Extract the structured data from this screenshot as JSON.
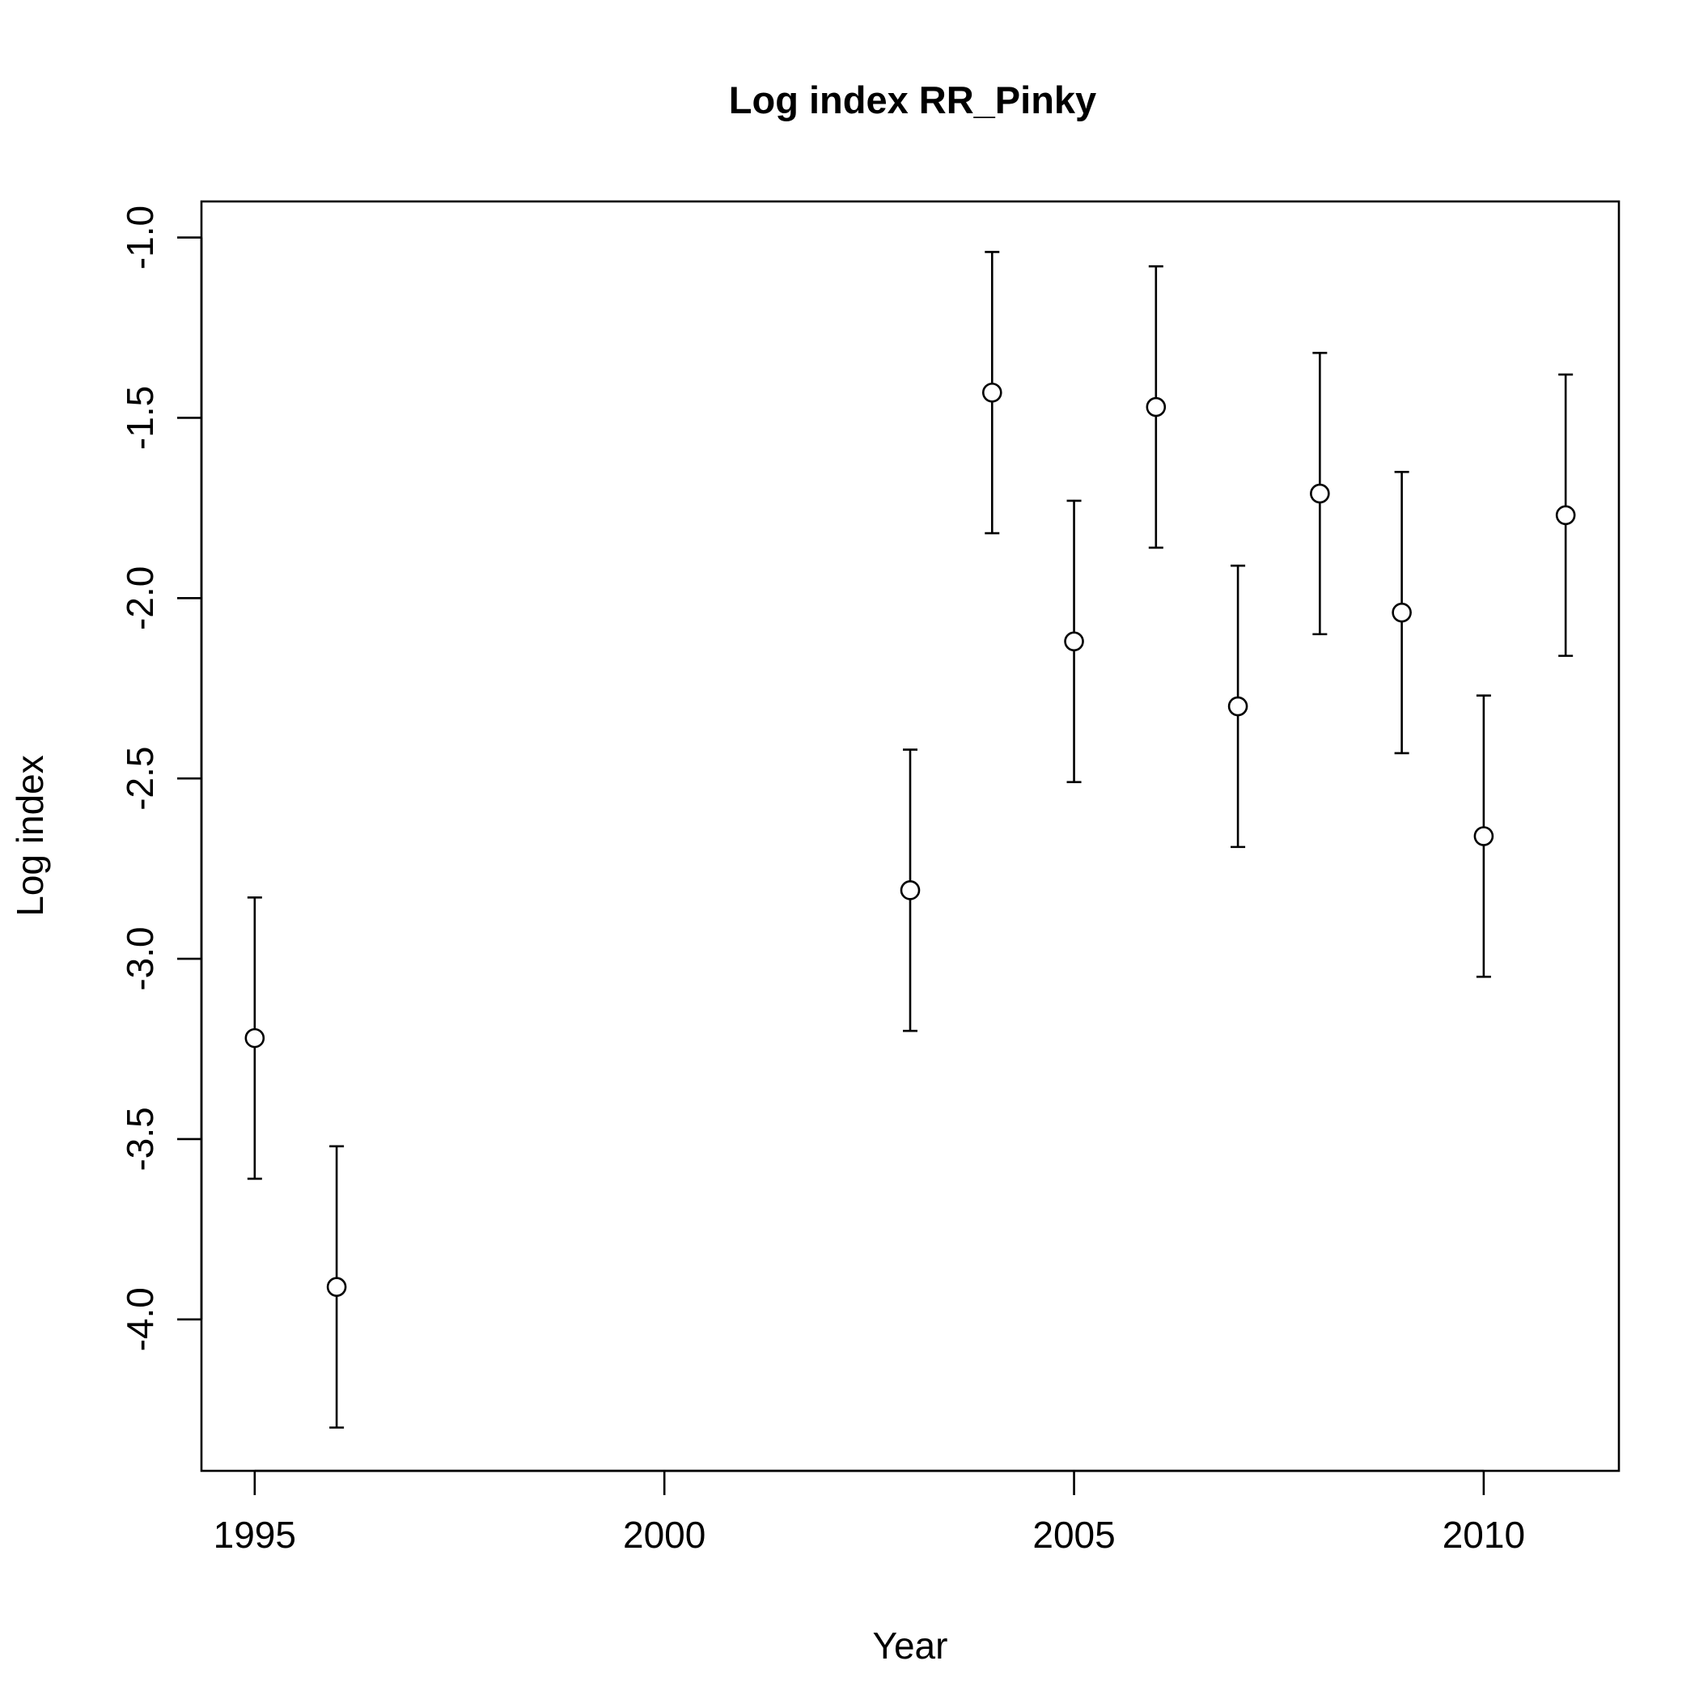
{
  "chart_data": {
    "type": "scatter",
    "title": "Log index RR_Pinky",
    "xlabel": "Year",
    "ylabel": "Log index",
    "xlim": [
      1994.35,
      2011.65
    ],
    "ylim": [
      -4.42,
      -0.9
    ],
    "x_ticks": [
      1995,
      2000,
      2005,
      2010
    ],
    "x_tick_labels": [
      "1995",
      "2000",
      "2005",
      "2010"
    ],
    "y_ticks": [
      -4.0,
      -3.5,
      -3.0,
      -2.5,
      -2.0,
      -1.5,
      -1.0
    ],
    "y_tick_labels": [
      "-4.0",
      "-3.5",
      "-3.0",
      "-2.5",
      "-2.0",
      "-1.5",
      "-1.0"
    ],
    "grid": false,
    "legend": "none",
    "point_style": "open-circle",
    "error_bars": true,
    "points": [
      {
        "x": 1995,
        "y": -3.22,
        "lower": -3.61,
        "upper": -2.83
      },
      {
        "x": 1996,
        "y": -3.91,
        "lower": -4.3,
        "upper": -3.52
      },
      {
        "x": 2003,
        "y": -2.81,
        "lower": -3.2,
        "upper": -2.42
      },
      {
        "x": 2004,
        "y": -1.43,
        "lower": -1.82,
        "upper": -1.04
      },
      {
        "x": 2005,
        "y": -2.12,
        "lower": -2.51,
        "upper": -1.73
      },
      {
        "x": 2006,
        "y": -1.47,
        "lower": -1.86,
        "upper": -1.08
      },
      {
        "x": 2007,
        "y": -2.3,
        "lower": -2.69,
        "upper": -1.91
      },
      {
        "x": 2008,
        "y": -1.71,
        "lower": -2.1,
        "upper": -1.32
      },
      {
        "x": 2009,
        "y": -2.04,
        "lower": -2.43,
        "upper": -1.65
      },
      {
        "x": 2010,
        "y": -2.66,
        "lower": -3.05,
        "upper": -2.27
      },
      {
        "x": 2011,
        "y": -1.77,
        "lower": -2.16,
        "upper": -1.38
      }
    ]
  }
}
